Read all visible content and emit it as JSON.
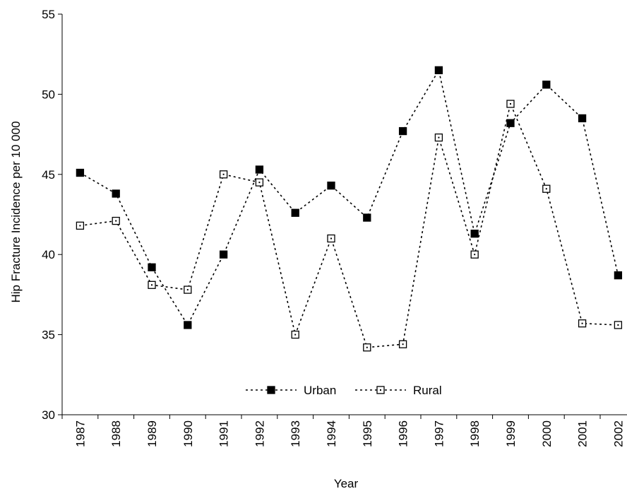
{
  "chart_data": {
    "type": "line",
    "x_label": "Year",
    "y_label": "Hip Fracture Incidence per 10 000",
    "categories": [
      "1987",
      "1988",
      "1989",
      "1990",
      "1991",
      "1992",
      "1993",
      "1994",
      "1995",
      "1996",
      "1997",
      "1998",
      "1999",
      "2000",
      "2001",
      "2002"
    ],
    "series": [
      {
        "name": "Urban",
        "color": "#000000",
        "marker_fill": "#000000",
        "values": [
          45.1,
          43.8,
          39.2,
          35.6,
          40.0,
          45.3,
          42.6,
          44.3,
          42.3,
          47.7,
          51.5,
          41.3,
          48.2,
          50.6,
          48.5,
          38.7
        ]
      },
      {
        "name": "Rural",
        "color": "#000000",
        "marker_fill": "#ffffff",
        "values": [
          41.8,
          42.1,
          38.1,
          37.8,
          45.0,
          44.5,
          35.0,
          41.0,
          34.2,
          34.4,
          47.3,
          40.0,
          49.4,
          44.1,
          35.7,
          35.6
        ]
      }
    ],
    "ylim": [
      30,
      55
    ],
    "yticks": [
      30,
      35,
      40,
      45,
      50,
      55
    ],
    "grid": false
  }
}
